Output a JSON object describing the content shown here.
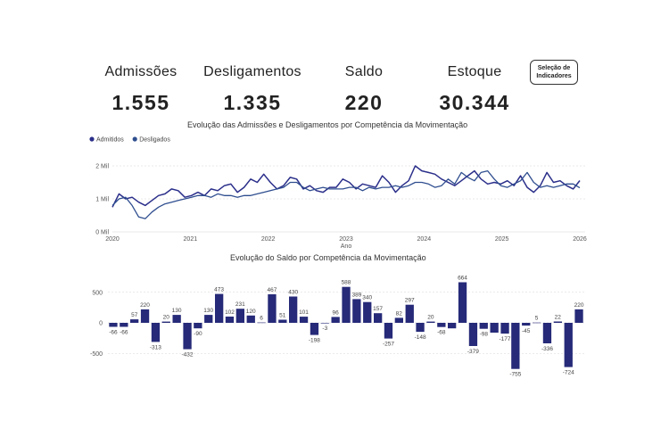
{
  "kpis": [
    {
      "label": "Admissões",
      "value": "1.555"
    },
    {
      "label": "Desligamentos",
      "value": "1.335"
    },
    {
      "label": "Saldo",
      "value": "220"
    },
    {
      "label": "Estoque",
      "value": "30.344"
    }
  ],
  "selector_button": {
    "label": "Seleção de Indicadores"
  },
  "colors": {
    "admitidos": "#2b2f8a",
    "desligados": "#2f4e8f",
    "bars": "#262a78",
    "grid": "#d6d6d6"
  },
  "chart_data": [
    {
      "type": "line",
      "title": "Evolução das Admissões e Desligamentos por Competência da Movimentação",
      "xlabel": "Ano",
      "ylabel": "",
      "xlim": [
        2020,
        2026
      ],
      "ylim": [
        0,
        2000
      ],
      "x_ticks": [
        "2020",
        "2021",
        "2022",
        "2023",
        "2024",
        "2025",
        "2026"
      ],
      "y_ticks": [
        {
          "value": 0,
          "label": "0 Mil"
        },
        {
          "value": 1000,
          "label": "1 Mil"
        },
        {
          "value": 2000,
          "label": "2 Mil"
        }
      ],
      "legend": "top-left",
      "series": [
        {
          "name": "Admitidos",
          "values": [
            750,
            1150,
            1000,
            1050,
            900,
            800,
            950,
            1100,
            1150,
            1300,
            1250,
            1050,
            1100,
            1200,
            1100,
            1300,
            1250,
            1400,
            1450,
            1200,
            1350,
            1600,
            1500,
            1750,
            1500,
            1300,
            1400,
            1650,
            1600,
            1300,
            1400,
            1250,
            1200,
            1350,
            1350,
            1600,
            1500,
            1300,
            1450,
            1400,
            1350,
            1700,
            1500,
            1200,
            1400,
            1550,
            2000,
            1850,
            1800,
            1750,
            1600,
            1500,
            1400,
            1550,
            1700,
            1850,
            1600,
            1450,
            1500,
            1450,
            1550,
            1400,
            1700,
            1350,
            1200,
            1400,
            1800,
            1500,
            1550,
            1400,
            1300,
            1555
          ]
        },
        {
          "name": "Desligados",
          "values": [
            800,
            1000,
            1050,
            800,
            450,
            400,
            600,
            750,
            850,
            900,
            950,
            1000,
            1050,
            1100,
            1100,
            1050,
            1150,
            1100,
            1100,
            1050,
            1100,
            1100,
            1150,
            1200,
            1250,
            1300,
            1350,
            1500,
            1500,
            1350,
            1250,
            1300,
            1350,
            1300,
            1300,
            1300,
            1350,
            1350,
            1250,
            1350,
            1300,
            1350,
            1350,
            1400,
            1350,
            1400,
            1500,
            1500,
            1450,
            1350,
            1400,
            1600,
            1450,
            1800,
            1650,
            1550,
            1800,
            1850,
            1600,
            1400,
            1350,
            1450,
            1550,
            1800,
            1500,
            1350,
            1400,
            1350,
            1400,
            1450,
            1450,
            1335
          ]
        }
      ]
    },
    {
      "type": "bar",
      "title": "Evolução do Saldo por Competência da Movimentação",
      "xlabel": "",
      "ylabel": "",
      "ylim": [
        -750,
        700
      ],
      "y_ticks": [
        {
          "value": 500,
          "label": "500"
        },
        {
          "value": 0,
          "label": "0"
        },
        {
          "value": -500,
          "label": "-500"
        }
      ],
      "values": [
        -66,
        -66,
        57,
        220,
        -313,
        20,
        130,
        -432,
        -90,
        130,
        473,
        102,
        231,
        120,
        6,
        467,
        51,
        430,
        101,
        -198,
        -3,
        96,
        588,
        389,
        340,
        157,
        -257,
        82,
        297,
        -148,
        20,
        -68,
        -90,
        664,
        -379,
        -98,
        -160,
        -177,
        -755,
        -45,
        5,
        -336,
        22,
        -724,
        220
      ],
      "data_labels": [
        "-66",
        "-66",
        "57",
        "220",
        "-313",
        "20",
        "130",
        "-432",
        "-90",
        "130",
        "473",
        "102",
        "231",
        "120",
        "6",
        "467",
        "51",
        "430",
        "101",
        "-198",
        "-3",
        "96",
        "588",
        "389",
        "340",
        "157",
        "-257",
        "82",
        "297",
        "-148",
        "20",
        "-68",
        "",
        "664",
        "-379",
        "-98",
        "",
        "-177",
        "-755",
        "-45",
        "5",
        "-336",
        "22",
        "-724",
        "220"
      ]
    }
  ]
}
